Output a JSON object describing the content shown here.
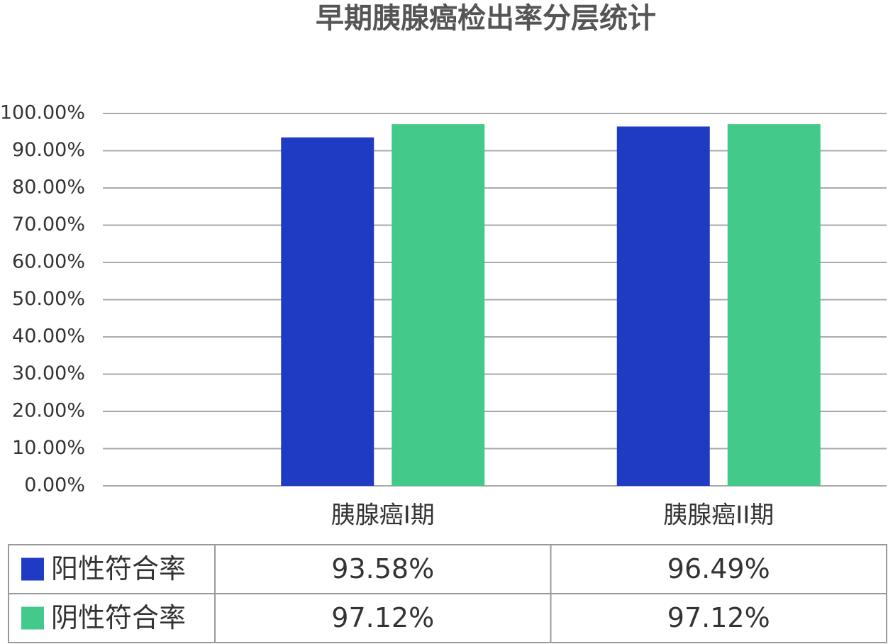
{
  "chart_data": {
    "type": "bar",
    "title": "早期胰腺癌检出率分层统计",
    "categories": [
      "胰腺癌I期",
      "胰腺癌II期"
    ],
    "series": [
      {
        "name": "阳性符合率",
        "color": "#1f3bc4",
        "values": [
          93.58,
          96.49
        ],
        "value_labels": [
          "93.58%",
          "96.49%"
        ]
      },
      {
        "name": "阴性符合率",
        "color": "#43c98a",
        "values": [
          97.12,
          97.12
        ],
        "value_labels": [
          "97.12%",
          "97.12%"
        ]
      }
    ],
    "ylim": [
      0,
      100
    ],
    "yticks": [
      {
        "value": 0,
        "label": "0.00%"
      },
      {
        "value": 10,
        "label": "10.00%"
      },
      {
        "value": 20,
        "label": "20.00%"
      },
      {
        "value": 30,
        "label": "30.00%"
      },
      {
        "value": 40,
        "label": "40.00%"
      },
      {
        "value": 50,
        "label": "50.00%"
      },
      {
        "value": 60,
        "label": "60.00%"
      },
      {
        "value": 70,
        "label": "70.00%"
      },
      {
        "value": 80,
        "label": "80.00%"
      },
      {
        "value": 90,
        "label": "90.00%"
      },
      {
        "value": 100,
        "label": "100.00%"
      }
    ],
    "grid": true
  }
}
